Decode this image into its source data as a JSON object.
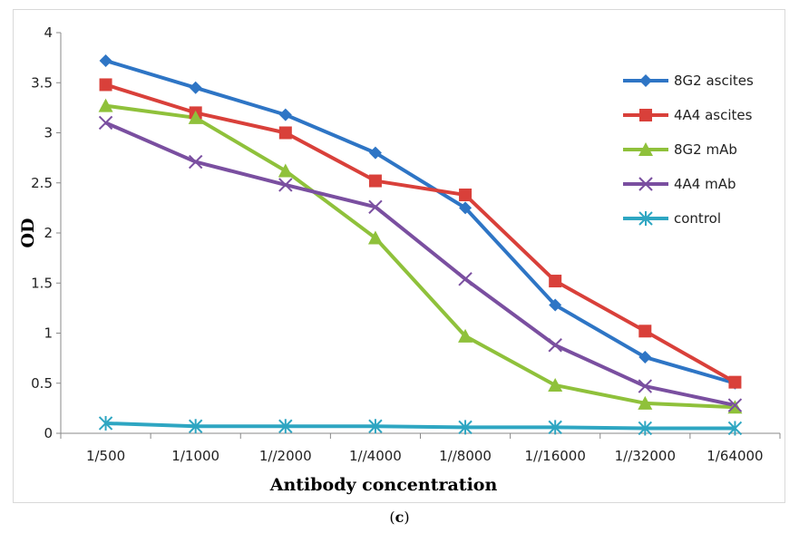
{
  "chart_data": {
    "type": "line",
    "categories": [
      "1/500",
      "1/1000",
      "1//2000",
      "1//4000",
      "1//8000",
      "1//16000",
      "1//32000",
      "1/64000"
    ],
    "xlabel": "Antibody concentration",
    "ylabel": "OD",
    "ylim": [
      0,
      4
    ],
    "yticks": [
      "0",
      "0.5",
      "1",
      "1.5",
      "2",
      "2.5",
      "3",
      "3.5",
      "4"
    ],
    "grid": false,
    "legend_position": "right",
    "series": [
      {
        "name": "8G2 ascites",
        "color": "#2e75c5",
        "marker": "diamond",
        "values": [
          3.72,
          3.45,
          3.18,
          2.8,
          2.25,
          1.28,
          0.76,
          0.5
        ]
      },
      {
        "name": "4A4 ascites",
        "color": "#d9403a",
        "marker": "square",
        "values": [
          3.48,
          3.2,
          3.0,
          2.52,
          2.38,
          1.52,
          1.02,
          0.51
        ]
      },
      {
        "name": "8G2 mAb",
        "color": "#8fc13b",
        "marker": "triangle",
        "values": [
          3.27,
          3.15,
          2.62,
          1.95,
          0.97,
          0.48,
          0.3,
          0.26
        ]
      },
      {
        "name": "4A4 mAb",
        "color": "#7a4fa0",
        "marker": "x",
        "values": [
          3.1,
          2.71,
          2.48,
          2.26,
          1.54,
          0.88,
          0.47,
          0.28
        ]
      },
      {
        "name": "control",
        "color": "#2ea6c2",
        "marker": "star",
        "values": [
          0.1,
          0.07,
          0.07,
          0.07,
          0.06,
          0.06,
          0.05,
          0.05
        ]
      }
    ]
  },
  "caption": {
    "open": "(",
    "letter": "c",
    "close": ")"
  }
}
